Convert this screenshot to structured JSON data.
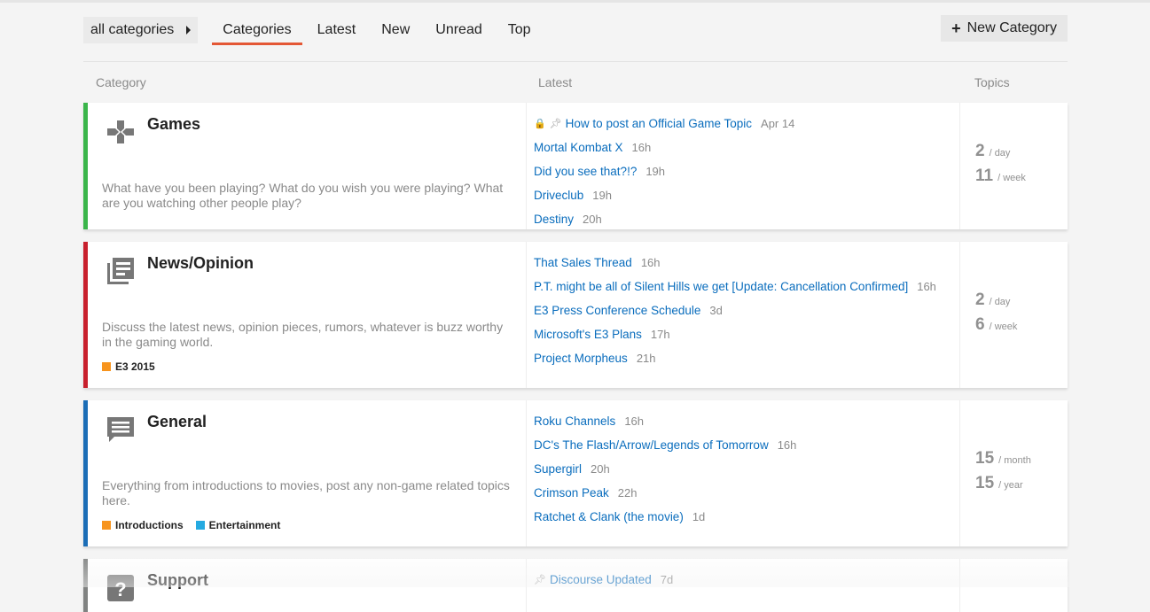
{
  "nav": {
    "category_dropdown": "all categories",
    "tabs": [
      "Categories",
      "Latest",
      "New",
      "Unread",
      "Top"
    ],
    "active_tab": "Categories",
    "new_category": "New Category"
  },
  "headers": {
    "category": "Category",
    "latest": "Latest",
    "topics": "Topics"
  },
  "colors": {
    "accent": "#e45735",
    "link": "#0a6dbd"
  },
  "categories": [
    {
      "name": "Games",
      "color": "#3ab54a",
      "icon": "gamepad-icon",
      "description": "What have you been playing? What do you wish you were playing? What are you watching other people play?",
      "subcategories": [],
      "topics": [
        {
          "title": "How to post an Official Game Topic",
          "age": "Apr 14",
          "locked": true,
          "pinned": true
        },
        {
          "title": "Mortal Kombat X",
          "age": "16h"
        },
        {
          "title": "Did you see that?!?",
          "age": "19h"
        },
        {
          "title": "Driveclub",
          "age": "19h"
        },
        {
          "title": "Destiny",
          "age": "20h"
        }
      ],
      "stats": [
        {
          "n": "2",
          "unit": "/ day"
        },
        {
          "n": "11",
          "unit": "/ week"
        }
      ]
    },
    {
      "name": "News/Opinion",
      "color": "#c8202d",
      "icon": "news-icon",
      "description": "Discuss the latest news, opinion pieces, rumors, whatever is buzz worthy in the gaming world.",
      "subcategories": [
        {
          "name": "E3 2015",
          "color": "#f7941d"
        }
      ],
      "topics": [
        {
          "title": "That Sales Thread",
          "age": "16h"
        },
        {
          "title": "P.T. might be all of Silent Hills we get [Update: Cancellation Confirmed]",
          "age": "16h"
        },
        {
          "title": "E3 Press Conference Schedule",
          "age": "3d"
        },
        {
          "title": "Microsoft's E3 Plans",
          "age": "17h"
        },
        {
          "title": "Project Morpheus",
          "age": "21h"
        }
      ],
      "stats": [
        {
          "n": "2",
          "unit": "/ day"
        },
        {
          "n": "6",
          "unit": "/ week"
        }
      ]
    },
    {
      "name": "General",
      "color": "#1b6db6",
      "icon": "comment-icon",
      "description": "Everything from introductions to movies, post any non-game related topics here.",
      "subcategories": [
        {
          "name": "Introductions",
          "color": "#f7941d"
        },
        {
          "name": "Entertainment",
          "color": "#25aae1"
        }
      ],
      "topics": [
        {
          "title": "Roku Channels",
          "age": "16h"
        },
        {
          "title": "DC's The Flash/Arrow/Legends of Tomorrow",
          "age": "16h"
        },
        {
          "title": "Supergirl",
          "age": "20h"
        },
        {
          "title": "Crimson Peak",
          "age": "22h"
        },
        {
          "title": "Ratchet & Clank (the movie)",
          "age": "1d"
        }
      ],
      "stats": [
        {
          "n": "15",
          "unit": "/ month"
        },
        {
          "n": "15",
          "unit": "/ year"
        }
      ]
    },
    {
      "name": "Support",
      "color": "#808281",
      "icon": "help-icon",
      "description": "",
      "subcategories": [],
      "topics": [
        {
          "title": "Discourse Updated",
          "age": "7d",
          "pinned": true
        }
      ],
      "stats": []
    }
  ]
}
